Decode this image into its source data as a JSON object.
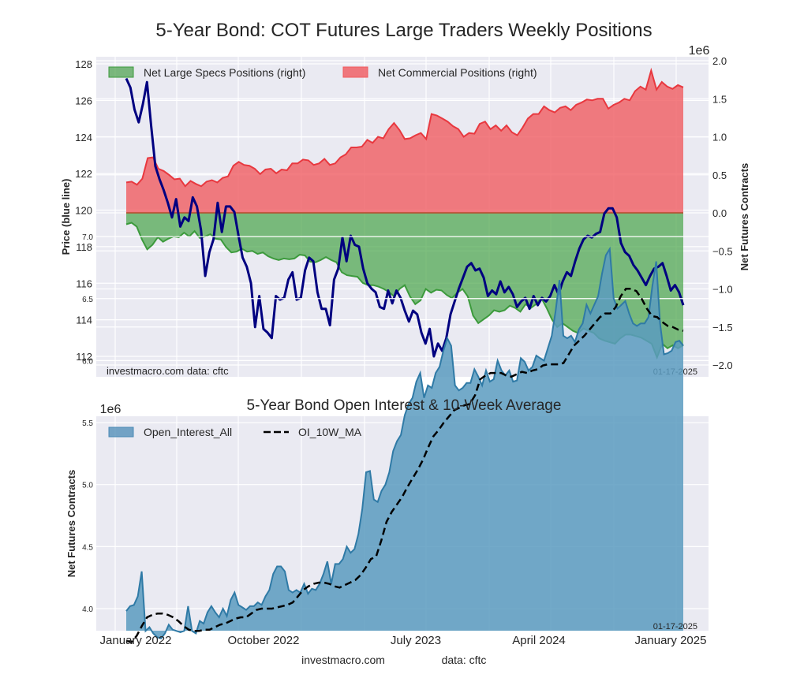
{
  "chart_data": [
    {
      "type": "area",
      "title": "5-Year Bond: COT Futures Large Traders Weekly Positions",
      "ylabel_left": "Price (blue line)",
      "ylabel_right": "Net Futures Contracts",
      "right_axis_multiplier": "1e6",
      "ylim_left": [
        111.6,
        128.3
      ],
      "ylim_right": [
        -2.1,
        2.05
      ],
      "yticks_left": [
        "112",
        "114",
        "116",
        "118",
        "120",
        "122",
        "124",
        "126",
        "128"
      ],
      "yticks_right": [
        "−2.0",
        "−1.5",
        "−1.0",
        "−0.5",
        "0.0",
        "0.5",
        "1.0",
        "1.5",
        "2.0"
      ],
      "grid": true,
      "legend_position": "top",
      "legend": [
        "Net Large Specs Positions (right)",
        "Net Commercial Positions (right)"
      ],
      "annotation_left": "investmacro.com    data: cftc",
      "annotation_right": "01-17-2025",
      "x_start": "2022-01",
      "x_end": "2025-01-17",
      "series": [
        {
          "name": "Net Commercial Positions (right)",
          "unit": "millions of contracts",
          "color": "#f0595e",
          "values": [
            0.4,
            0.41,
            0.37,
            0.45,
            0.72,
            0.73,
            0.58,
            0.55,
            0.5,
            0.44,
            0.45,
            0.35,
            0.42,
            0.38,
            0.35,
            0.41,
            0.43,
            0.4,
            0.46,
            0.48,
            0.62,
            0.67,
            0.63,
            0.62,
            0.58,
            0.51,
            0.57,
            0.58,
            0.52,
            0.57,
            0.56,
            0.65,
            0.65,
            0.7,
            0.69,
            0.63,
            0.65,
            0.71,
            0.63,
            0.65,
            0.73,
            0.77,
            0.86,
            0.86,
            0.87,
            0.96,
            0.92,
            1.0,
            0.98,
            1.1,
            1.18,
            1.09,
            0.97,
            0.98,
            1.02,
            1.05,
            0.97,
            1.3,
            1.28,
            1.24,
            1.2,
            1.14,
            1.1,
            1.0,
            1.05,
            1.04,
            1.17,
            1.2,
            1.1,
            1.15,
            1.08,
            1.15,
            1.06,
            1.02,
            1.12,
            1.24,
            1.3,
            1.3,
            1.4,
            1.35,
            1.32,
            1.38,
            1.4,
            1.35,
            1.42,
            1.45,
            1.49,
            1.48,
            1.5,
            1.5,
            1.37,
            1.42,
            1.45,
            1.5,
            1.48,
            1.6,
            1.66,
            1.62,
            1.87,
            1.62,
            1.72,
            1.66,
            1.63,
            1.68,
            1.65
          ]
        },
        {
          "name": "Net Large Specs Positions (right)",
          "unit": "millions of contracts",
          "color": "#3c9a3c",
          "values": [
            -0.15,
            -0.13,
            -0.18,
            -0.35,
            -0.48,
            -0.42,
            -0.32,
            -0.38,
            -0.34,
            -0.31,
            -0.32,
            -0.26,
            -0.31,
            -0.24,
            -0.33,
            -0.31,
            -0.28,
            -0.34,
            -0.35,
            -0.45,
            -0.52,
            -0.51,
            -0.47,
            -0.51,
            -0.5,
            -0.54,
            -0.52,
            -0.57,
            -0.6,
            -0.62,
            -0.6,
            -0.61,
            -0.6,
            -0.55,
            -0.56,
            -0.64,
            -0.65,
            -0.62,
            -0.58,
            -0.62,
            -0.65,
            -0.78,
            -0.82,
            -0.83,
            -0.84,
            -0.92,
            -0.95,
            -0.95,
            -0.97,
            -1.0,
            -1.04,
            -1.1,
            -1.0,
            -0.95,
            -1.1,
            -1.2,
            -1.15,
            -1.0,
            -1.05,
            -1.01,
            -1.02,
            -1.08,
            -1.12,
            -1.05,
            -1.0,
            -1.1,
            -1.35,
            -1.45,
            -1.4,
            -1.35,
            -1.28,
            -1.3,
            -1.28,
            -1.22,
            -1.25,
            -1.3,
            -1.2,
            -1.25,
            -1.2,
            -1.12,
            -1.25,
            -1.4,
            -1.5,
            -1.45,
            -1.5,
            -1.55,
            -1.58,
            -1.52,
            -1.55,
            -1.58,
            -1.65,
            -1.68,
            -1.7,
            -1.72,
            -1.65,
            -1.6,
            -1.6,
            -1.62,
            -1.64,
            -1.68,
            -1.72,
            -1.9,
            -1.72,
            -1.78,
            -1.74,
            -1.78,
            -1.74
          ]
        },
        {
          "name": "Price (blue line)",
          "unit": "price",
          "color": "#000080",
          "values": [
            127.2,
            126.7,
            125.5,
            124.8,
            125.8,
            127.0,
            124.6,
            122.4,
            121.7,
            121.1,
            120.4,
            119.6,
            120.6,
            119.1,
            119.6,
            119.4,
            120.7,
            120.2,
            118.9,
            116.4,
            117.7,
            118.4,
            120.4,
            118.8,
            120.2,
            120.2,
            119.9,
            118.6,
            117.4,
            116.9,
            116.0,
            113.6,
            115.3,
            113.5,
            113.3,
            113.0,
            115.3,
            115.1,
            115.2,
            116.2,
            116.6,
            115.1,
            115.2,
            116.7,
            117.4,
            117.2,
            115.5,
            114.6,
            114.6,
            113.7,
            116.2,
            116.8,
            118.5,
            117.2,
            118.6,
            118.1,
            118.0,
            116.8,
            116.0,
            115.7,
            115.5,
            114.7,
            114.6,
            115.6,
            114.9,
            115.6,
            115.2,
            114.5,
            113.9,
            114.5,
            114.3,
            113.3,
            112.7,
            113.5,
            112.0,
            112.7,
            112.3,
            113.0,
            114.3,
            115.0,
            115.7,
            116.3,
            116.9,
            117.1,
            116.7,
            116.8,
            116.3,
            115.3,
            115.6,
            115.4,
            116.1,
            115.5,
            115.8,
            115.4,
            114.7,
            115.0,
            115.2,
            114.6,
            115.3,
            114.8,
            115.2,
            115.0,
            115.3,
            115.9,
            115.4,
            116.1,
            116.6,
            116.4,
            117.2,
            117.9,
            118.4,
            118.6,
            118.5,
            118.7,
            118.8,
            119.8,
            120.1,
            120.1,
            119.6,
            118.2,
            117.7,
            117.5,
            117.0,
            116.7,
            116.3,
            115.9,
            116.4,
            116.8,
            116.9,
            117.1,
            116.4,
            115.6,
            115.9,
            115.5,
            114.8
          ]
        }
      ]
    },
    {
      "type": "area",
      "title": "5-Year Bond Open Interest & 10-Week Average",
      "ylabel": "Net Futures Contracts",
      "y_multiplier": "1e6",
      "ylim": [
        3.65,
        7.05
      ],
      "yticks": [
        "4.0",
        "4.5",
        "5.0",
        "5.5",
        "6.0",
        "6.5",
        "7.0"
      ],
      "xticks": [
        "January 2022",
        "October 2022",
        "July 2023",
        "April 2024",
        "January 2025"
      ],
      "grid": true,
      "legend_position": "top-left",
      "legend": [
        "Open_Interest_All",
        "OI_10W_MA"
      ],
      "annotation_right": "01-17-2025",
      "x_start": "2022-01",
      "x_end": "2025-01-17",
      "series": [
        {
          "name": "Open_Interest_All",
          "unit": "millions of contracts",
          "color": "#4a8ab5",
          "values": [
            3.98,
            4.02,
            4.03,
            4.1,
            4.3,
            3.82,
            3.85,
            3.8,
            3.77,
            3.76,
            3.8,
            3.87,
            3.83,
            3.82,
            3.81,
            3.82,
            4.02,
            3.82,
            3.8,
            3.9,
            3.88,
            3.97,
            4.02,
            3.97,
            3.93,
            4.0,
            3.94,
            4.07,
            4.13,
            4.03,
            4.01,
            3.99,
            4.02,
            4.02,
            4.05,
            4.03,
            4.1,
            4.15,
            4.28,
            4.34,
            4.34,
            4.3,
            4.15,
            4.13,
            4.15,
            4.13,
            4.2,
            4.12,
            4.16,
            4.15,
            4.2,
            4.28,
            4.38,
            4.2,
            4.36,
            4.36,
            4.4,
            4.5,
            4.45,
            4.48,
            4.6,
            4.8,
            5.1,
            5.11,
            4.88,
            4.86,
            4.95,
            5.0,
            5.1,
            5.27,
            5.35,
            5.4,
            5.56,
            5.65,
            5.7,
            5.83,
            5.9,
            5.7,
            5.8,
            5.78,
            5.9,
            5.95,
            6.08,
            6.18,
            6.12,
            5.8,
            5.76,
            5.78,
            5.82,
            5.82,
            5.93,
            5.87,
            5.8,
            5.92,
            5.83,
            5.85,
            6.0,
            5.92,
            5.88,
            5.92,
            5.83,
            5.84,
            6.02,
            5.99,
            5.92,
            5.95,
            6.04,
            6.02,
            6.0,
            6.1,
            6.2,
            6.4,
            6.65,
            6.2,
            6.18,
            6.2,
            6.15,
            6.25,
            6.3,
            6.45,
            6.38,
            6.45,
            6.52,
            6.7,
            6.85,
            6.9,
            6.5,
            6.42,
            6.45,
            6.48,
            6.38,
            6.3,
            6.28,
            6.3,
            6.3,
            6.35,
            6.6,
            6.8,
            6.3,
            6.05,
            6.06,
            6.08,
            6.15,
            6.16,
            6.12
          ]
        },
        {
          "name": "OI_10W_MA",
          "unit": "millions of contracts",
          "color": "#000000",
          "values": [
            3.74,
            3.73,
            3.78,
            3.86,
            3.93,
            3.95,
            3.96,
            3.96,
            3.95,
            3.93,
            3.9,
            3.86,
            3.83,
            3.82,
            3.82,
            3.83,
            3.83,
            3.85,
            3.87,
            3.88,
            3.9,
            3.92,
            3.93,
            3.93,
            3.96,
            3.99,
            4.0,
            4.0,
            4.0,
            4.01,
            4.02,
            4.03,
            4.05,
            4.1,
            4.15,
            4.18,
            4.2,
            4.21,
            4.21,
            4.2,
            4.18,
            4.17,
            4.19,
            4.21,
            4.23,
            4.27,
            4.33,
            4.4,
            4.42,
            4.55,
            4.7,
            4.78,
            4.84,
            4.9,
            4.98,
            5.05,
            5.12,
            5.2,
            5.3,
            5.39,
            5.44,
            5.5,
            5.55,
            5.6,
            5.62,
            5.64,
            5.65,
            5.72,
            5.85,
            5.88,
            5.9,
            5.9,
            5.9,
            5.88,
            5.87,
            5.89,
            5.91,
            5.9,
            5.92,
            5.93,
            5.96,
            5.97,
            5.97,
            5.97,
            5.98,
            6.05,
            6.12,
            6.16,
            6.2,
            6.25,
            6.3,
            6.35,
            6.38,
            6.38,
            6.43,
            6.52,
            6.58,
            6.58,
            6.56,
            6.5,
            6.42,
            6.36,
            6.35,
            6.31,
            6.28,
            6.27,
            6.25,
            6.24
          ]
        }
      ]
    }
  ],
  "footer": {
    "left": "investmacro.com",
    "right": "data: cftc"
  }
}
